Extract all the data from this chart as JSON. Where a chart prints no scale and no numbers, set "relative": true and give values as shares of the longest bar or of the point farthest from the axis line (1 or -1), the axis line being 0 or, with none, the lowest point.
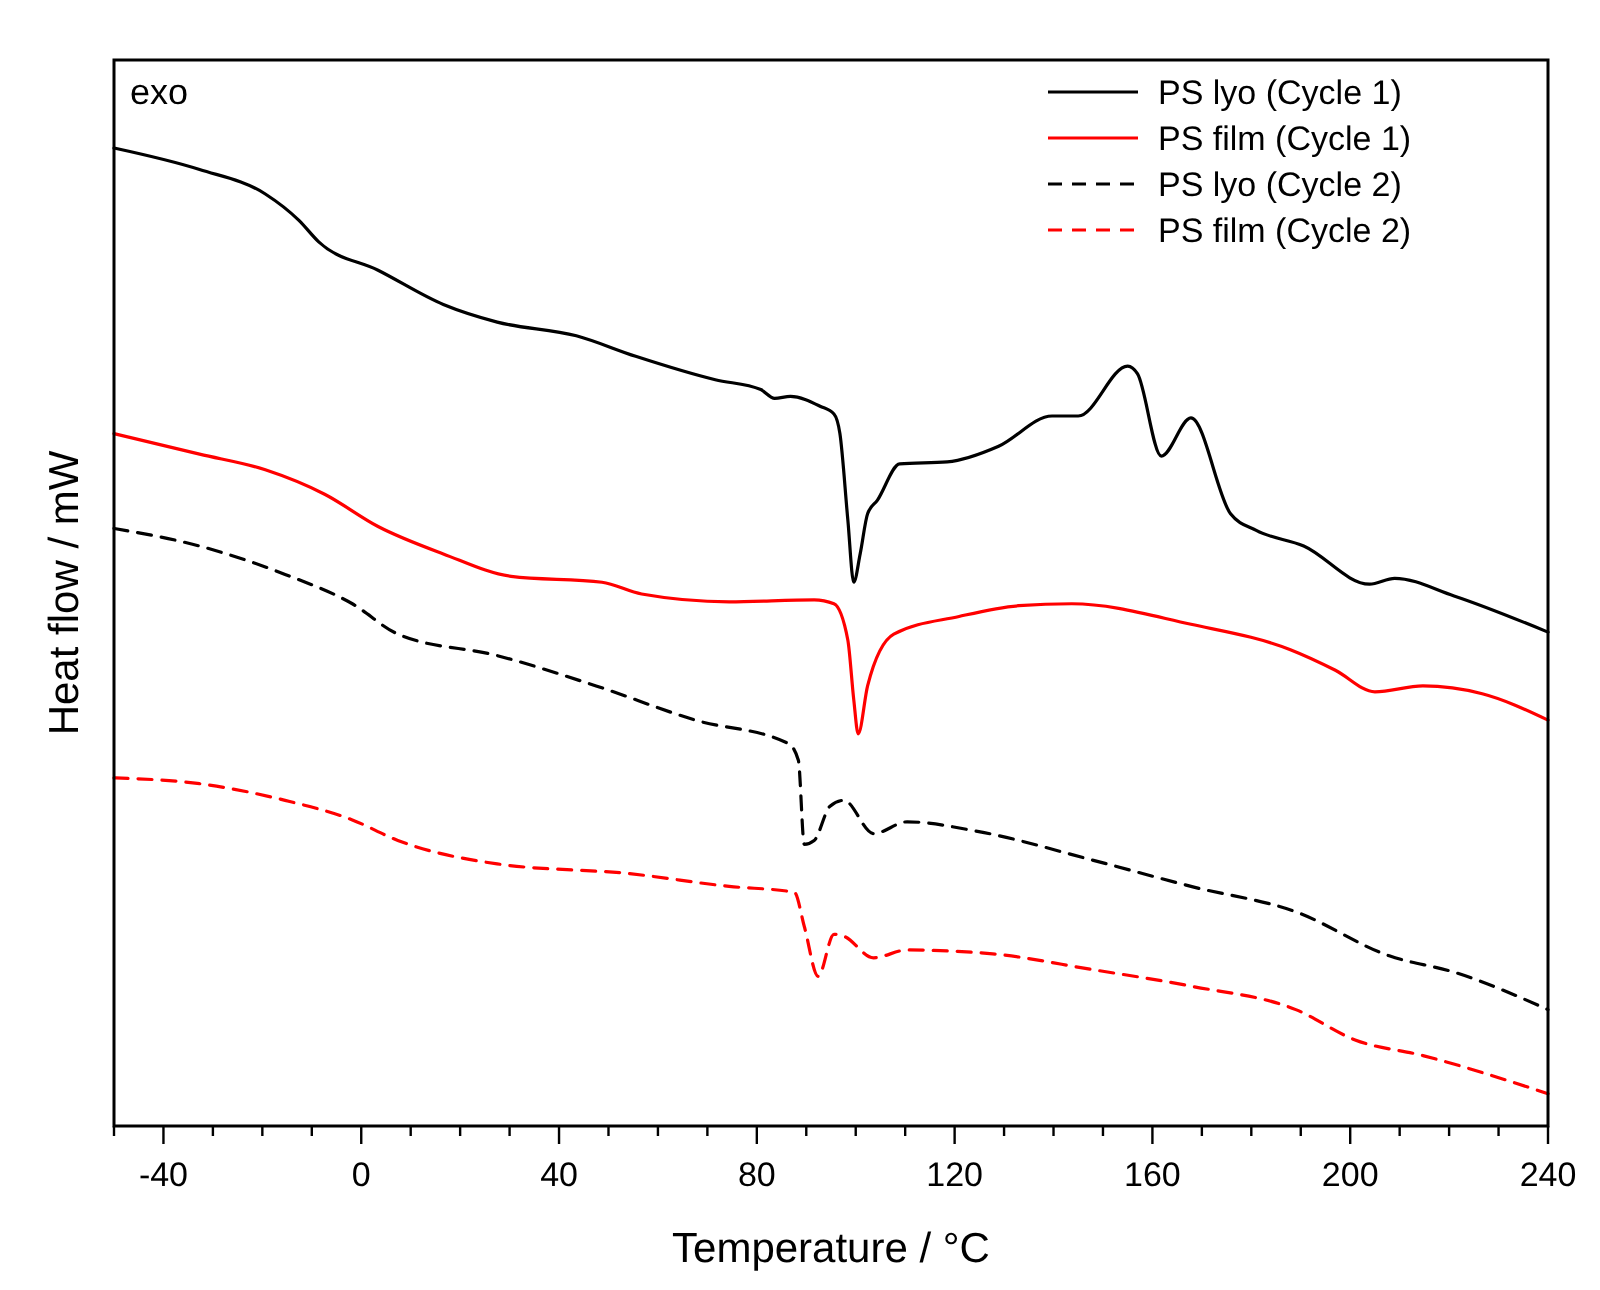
{
  "chart_data": {
    "type": "line",
    "relative": true,
    "ylabel": "Heat flow / mW",
    "xlabel": "Temperature / °C",
    "annotations": [
      "exo"
    ],
    "legend": "top right",
    "tick_labels": "x",
    "xlim": [
      -50,
      240
    ],
    "xticks": [
      {
        "value": -50,
        "label": null
      },
      -40,
      {
        "value": -30,
        "label": null
      },
      {
        "value": -20,
        "label": null
      },
      {
        "value": -10,
        "label": null
      },
      0,
      {
        "value": 10,
        "label": null
      },
      {
        "value": 20,
        "label": null
      },
      {
        "value": 30,
        "label": null
      },
      40,
      {
        "value": 50,
        "label": null
      },
      {
        "value": 60,
        "label": null
      },
      {
        "value": 70,
        "label": null
      },
      80,
      {
        "value": 90,
        "label": null
      },
      {
        "value": 100,
        "label": null
      },
      {
        "value": 110,
        "label": null
      },
      120,
      {
        "value": 130,
        "label": null
      },
      {
        "value": 140,
        "label": null
      },
      {
        "value": 150,
        "label": null
      },
      160,
      {
        "value": 170,
        "label": null
      },
      {
        "value": 180,
        "label": null
      },
      {
        "value": 190,
        "label": null
      },
      200,
      {
        "value": 210,
        "label": null
      },
      {
        "value": 220,
        "label": null
      },
      {
        "value": 230,
        "label": null
      },
      240
    ],
    "series": [
      {
        "name": "PS lyo (Cycle 1)",
        "color": "#000000",
        "line_style": "solid",
        "x": [
          -50,
          -32.7,
          -19.4,
          -12.6,
          -8.6,
          3.4,
          16.6,
          27.5,
          43.5,
          55.5,
          71.6,
          80.8,
          83.6,
          86.8,
          92.8,
          95.6,
          96.8,
          98.4,
          99.6,
          100.9,
          102.4,
          104.4,
          108.9,
          118.5,
          128.9,
          139.7,
          145,
          155,
          157,
          161.8,
          167.8,
          175.8,
          181,
          190.6,
          203.9,
          209,
          221,
          240
        ],
        "values": [
          1.0,
          0.978,
          0.953,
          0.926,
          0.904,
          0.875,
          0.84,
          0.822,
          0.808,
          0.787,
          0.763,
          0.753,
          0.744,
          0.746,
          0.736,
          0.728,
          0.708,
          0.62,
          0.556,
          0.585,
          0.626,
          0.64,
          0.677,
          0.679,
          0.695,
          0.726,
          0.726,
          0.777,
          0.769,
          0.685,
          0.724,
          0.626,
          0.609,
          0.593,
          0.554,
          0.56,
          0.542,
          0.505
        ]
      },
      {
        "name": "PS film (Cycle 1)",
        "color": "#ff0000",
        "line_style": "solid",
        "x": [
          -50,
          -32.7,
          -19.4,
          -7.4,
          3.4,
          16.6,
          30.3,
          48.7,
          56.7,
          74.4,
          91.6,
          95.6,
          98.4,
          99.6,
          100.5,
          102.4,
          107.7,
          120.9,
          133,
          143.7,
          167.8,
          187.9,
          197,
          205,
          214.7,
          226.7,
          240
        ],
        "values": [
          0.708,
          0.687,
          0.671,
          0.646,
          0.613,
          0.585,
          0.562,
          0.556,
          0.544,
          0.536,
          0.538,
          0.534,
          0.497,
          0.436,
          0.401,
          0.45,
          0.503,
          0.521,
          0.532,
          0.534,
          0.513,
          0.487,
          0.466,
          0.444,
          0.45,
          0.442,
          0.415
        ]
      },
      {
        "name": "PS lyo (Cycle 2)",
        "color": "#000000",
        "line_style": "dashed",
        "x": [
          -50,
          -32.7,
          -15.4,
          -1.8,
          7.4,
          27.5,
          47.5,
          67.6,
          86.4,
          88.4,
          89.6,
          91.6,
          94.8,
          97.6,
          103.6,
          110.4,
          124.9,
          147.8,
          167.8,
          189,
          207.9,
          221.2,
          240
        ],
        "values": [
          0.611,
          0.593,
          0.564,
          0.534,
          0.503,
          0.481,
          0.45,
          0.415,
          0.391,
          0.374,
          0.288,
          0.292,
          0.327,
          0.333,
          0.299,
          0.311,
          0.301,
          0.272,
          0.245,
          0.219,
          0.174,
          0.157,
          0.119
        ]
      },
      {
        "name": "PS film (Cycle 2)",
        "color": "#ff0000",
        "line_style": "dashed",
        "x": [
          -50,
          -32.7,
          -15.4,
          -1.8,
          7.4,
          27.5,
          54.3,
          74.4,
          87.6,
          89.6,
          92.4,
          95.6,
          97.6,
          103.6,
          110.4,
          127.7,
          147.8,
          167.8,
          189,
          201,
          214.7,
          240
        ],
        "values": [
          0.356,
          0.35,
          0.333,
          0.313,
          0.292,
          0.268,
          0.258,
          0.245,
          0.239,
          0.204,
          0.153,
          0.196,
          0.194,
          0.172,
          0.18,
          0.176,
          0.16,
          0.143,
          0.119,
          0.088,
          0.072,
          0.033
        ]
      }
    ]
  }
}
